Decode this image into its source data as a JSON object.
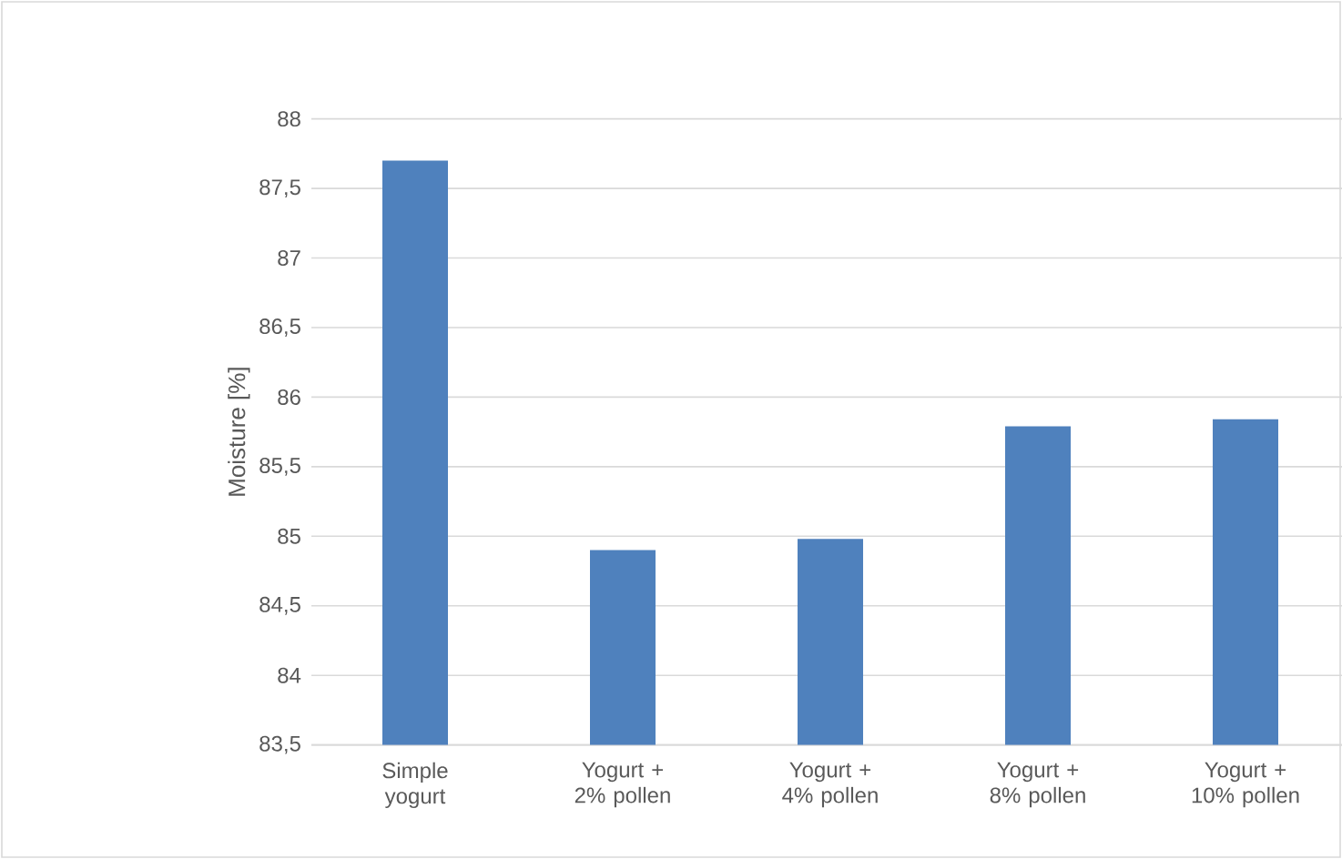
{
  "chart_data": {
    "type": "bar",
    "ylabel": "Moisture [%]",
    "categories": [
      "Simple yogurt",
      "Yogurt + 2% pollen",
      "Yogurt + 4% pollen",
      "Yogurt + 8% pollen",
      "Yogurt + 10% pollen"
    ],
    "values": [
      87.7,
      84.9,
      84.98,
      85.79,
      85.84
    ],
    "color": "#4f81bd",
    "ylim": [
      83.5,
      88
    ],
    "yticks": [
      {
        "value": 83.5,
        "label": "83,5"
      },
      84,
      {
        "value": 84.5,
        "label": "84,5"
      },
      85,
      {
        "value": 85.5,
        "label": "85,5"
      },
      86,
      {
        "value": 86.5,
        "label": "86,5"
      },
      87,
      {
        "value": 87.5,
        "label": "87,5"
      },
      88
    ],
    "grid": "y"
  }
}
